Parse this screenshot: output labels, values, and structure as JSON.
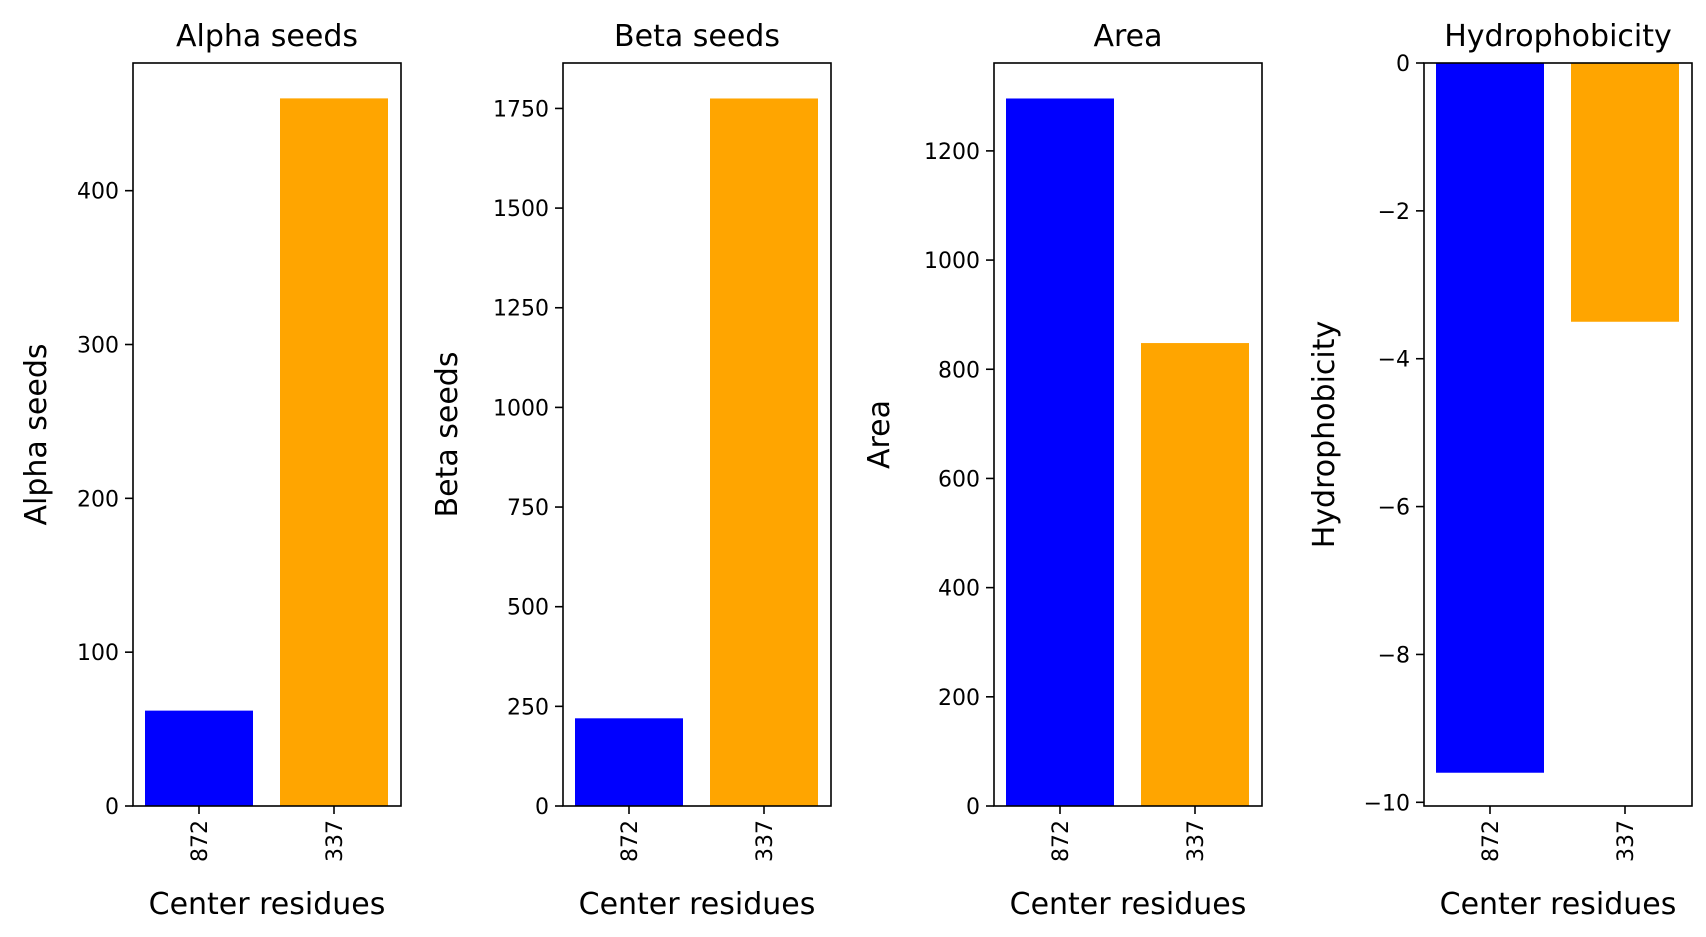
{
  "chart_data": [
    {
      "type": "bar",
      "title": "Alpha seeds",
      "xlabel": "Center residues",
      "ylabel": "Alpha seeds",
      "categories": [
        "872",
        "337"
      ],
      "values": [
        62,
        460
      ],
      "colors": [
        "#0000ff",
        "#ffa500"
      ],
      "ylim": [
        0,
        483
      ],
      "yticks": [
        0,
        100,
        200,
        300,
        400
      ]
    },
    {
      "type": "bar",
      "title": "Beta seeds",
      "xlabel": "Center residues",
      "ylabel": "Beta seeds",
      "categories": [
        "872",
        "337"
      ],
      "values": [
        220,
        1775
      ],
      "colors": [
        "#0000ff",
        "#ffa500"
      ],
      "ylim": [
        0,
        1864
      ],
      "yticks": [
        0,
        250,
        500,
        750,
        1000,
        1250,
        1500,
        1750
      ]
    },
    {
      "type": "bar",
      "title": "Area",
      "xlabel": "Center residues",
      "ylabel": "Area",
      "categories": [
        "872",
        "337"
      ],
      "values": [
        1296,
        848
      ],
      "colors": [
        "#0000ff",
        "#ffa500"
      ],
      "ylim": [
        0,
        1361
      ],
      "yticks": [
        0,
        200,
        400,
        600,
        800,
        1000,
        1200
      ]
    },
    {
      "type": "bar",
      "title": "Hydrophobicity",
      "xlabel": "Center residues",
      "ylabel": "Hydrophobicity",
      "categories": [
        "872",
        "337"
      ],
      "values": [
        -9.6,
        -3.5
      ],
      "colors": [
        "#0000ff",
        "#ffa500"
      ],
      "ylim": [
        -10.05,
        0
      ],
      "yticks": [
        0,
        -2,
        -4,
        -6,
        -8,
        -10
      ],
      "ytick_labels": [
        "0",
        "−2",
        "−4",
        "−6",
        "−8",
        "−10"
      ]
    }
  ]
}
